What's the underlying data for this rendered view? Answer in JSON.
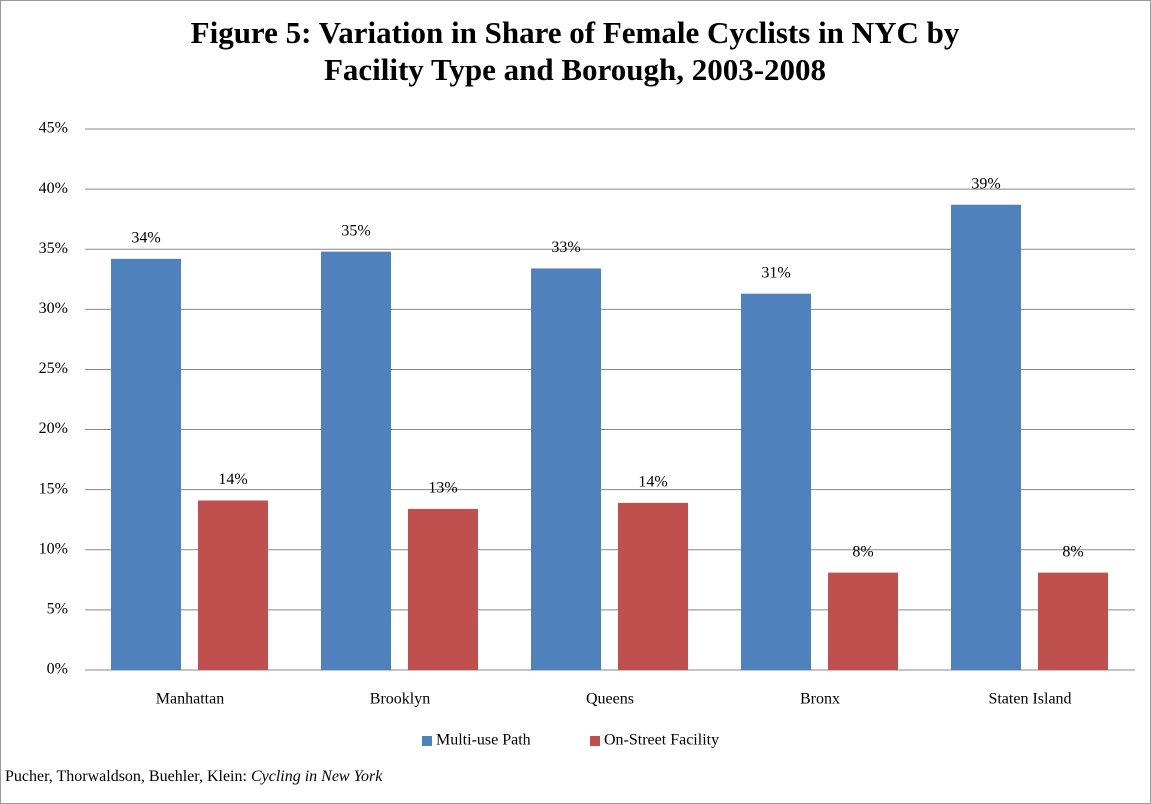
{
  "chart_data": {
    "type": "bar",
    "title": "Figure 5: Variation in Share of Female Cyclists in NYC by Facility Type and Borough, 2003-2008",
    "categories": [
      "Manhattan",
      "Brooklyn",
      "Queens",
      "Bronx",
      "Staten Island"
    ],
    "series": [
      {
        "name": "Multi-use Path",
        "color": "#4f81bd",
        "values": [
          34.2,
          34.8,
          33.4,
          31.3,
          38.7
        ],
        "value_labels": [
          "34%",
          "35%",
          "33%",
          "31%",
          "39%"
        ]
      },
      {
        "name": "On-Street Facility",
        "color": "#c0504d",
        "values": [
          14.1,
          13.4,
          13.9,
          8.1,
          8.1
        ],
        "value_labels": [
          "14%",
          "13%",
          "14%",
          "8%",
          "8%"
        ]
      }
    ],
    "ylim": [
      0,
      45
    ],
    "yticks": [
      {
        "value": 0,
        "label": "0%"
      },
      {
        "value": 5,
        "label": "5%"
      },
      {
        "value": 10,
        "label": "10%"
      },
      {
        "value": 15,
        "label": "15%"
      },
      {
        "value": 20,
        "label": "20%"
      },
      {
        "value": 25,
        "label": "25%"
      },
      {
        "value": 30,
        "label": "30%"
      },
      {
        "value": 35,
        "label": "35%"
      },
      {
        "value": 40,
        "label": "40%"
      },
      {
        "value": 45,
        "label": "45%"
      }
    ],
    "grid": true,
    "legend": "bottom",
    "source_authors": "Pucher, Thorwaldson, Buehler, Klein:",
    "source_work": "Cycling in New York"
  }
}
